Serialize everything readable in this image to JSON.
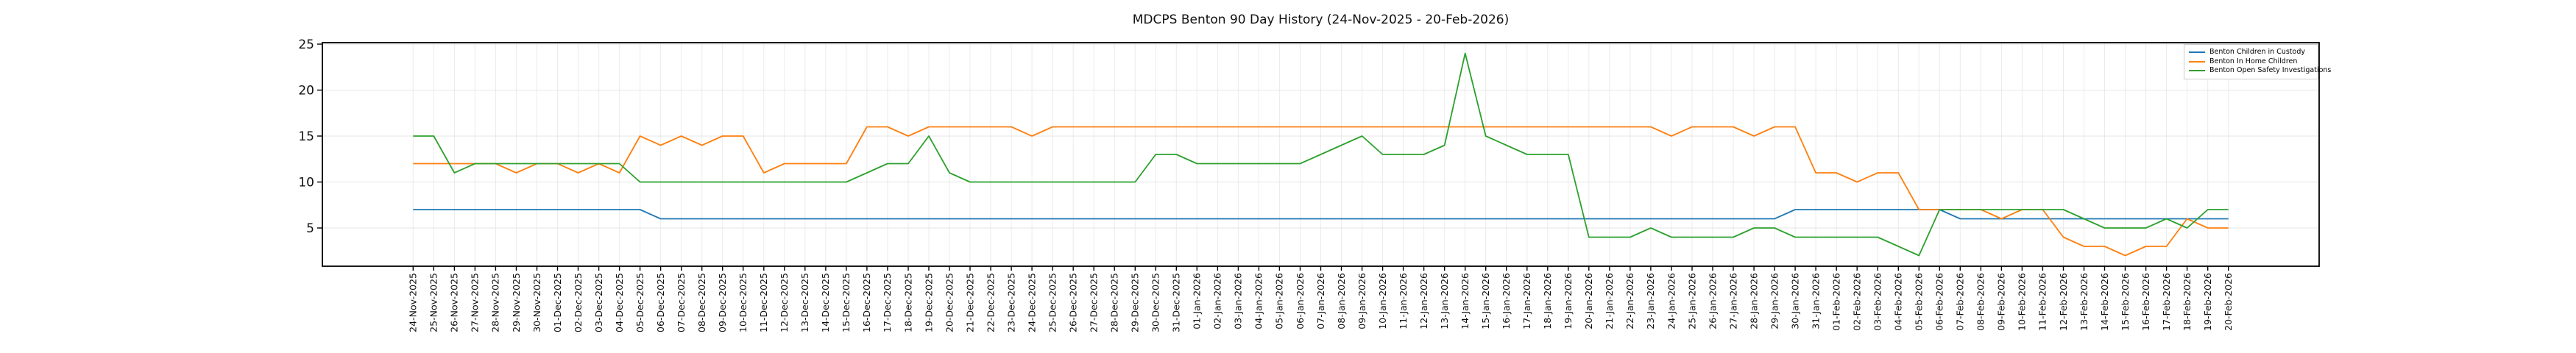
{
  "chart_data": {
    "type": "line",
    "title": "MDCPS Benton 90 Day History (24-Nov-2025 - 20-Feb-2026)",
    "xlabel": "",
    "ylabel": "",
    "grid": true,
    "legend_position": "upper right",
    "yticks": [
      5,
      10,
      15,
      20,
      25
    ],
    "ylim": [
      0.84,
      25.16
    ],
    "xlim_days": [
      -4.4,
      92.4
    ],
    "x": [
      "24-Nov-2025",
      "25-Nov-2025",
      "26-Nov-2025",
      "27-Nov-2025",
      "28-Nov-2025",
      "29-Nov-2025",
      "30-Nov-2025",
      "01-Dec-2025",
      "02-Dec-2025",
      "03-Dec-2025",
      "04-Dec-2025",
      "05-Dec-2025",
      "06-Dec-2025",
      "07-Dec-2025",
      "08-Dec-2025",
      "09-Dec-2025",
      "10-Dec-2025",
      "11-Dec-2025",
      "12-Dec-2025",
      "13-Dec-2025",
      "14-Dec-2025",
      "15-Dec-2025",
      "16-Dec-2025",
      "17-Dec-2025",
      "18-Dec-2025",
      "19-Dec-2025",
      "20-Dec-2025",
      "21-Dec-2025",
      "22-Dec-2025",
      "23-Dec-2025",
      "24-Dec-2025",
      "25-Dec-2025",
      "26-Dec-2025",
      "27-Dec-2025",
      "28-Dec-2025",
      "29-Dec-2025",
      "30-Dec-2025",
      "31-Dec-2025",
      "01-Jan-2026",
      "02-Jan-2026",
      "03-Jan-2026",
      "04-Jan-2026",
      "05-Jan-2026",
      "06-Jan-2026",
      "07-Jan-2026",
      "08-Jan-2026",
      "09-Jan-2026",
      "10-Jan-2026",
      "11-Jan-2026",
      "12-Jan-2026",
      "13-Jan-2026",
      "14-Jan-2026",
      "15-Jan-2026",
      "16-Jan-2026",
      "17-Jan-2026",
      "18-Jan-2026",
      "19-Jan-2026",
      "20-Jan-2026",
      "21-Jan-2026",
      "22-Jan-2026",
      "23-Jan-2026",
      "24-Jan-2026",
      "25-Jan-2026",
      "26-Jan-2026",
      "27-Jan-2026",
      "28-Jan-2026",
      "29-Jan-2026",
      "30-Jan-2026",
      "31-Jan-2026",
      "01-Feb-2026",
      "02-Feb-2026",
      "03-Feb-2026",
      "04-Feb-2026",
      "05-Feb-2026",
      "06-Feb-2026",
      "07-Feb-2026",
      "08-Feb-2026",
      "09-Feb-2026",
      "10-Feb-2026",
      "11-Feb-2026",
      "12-Feb-2026",
      "13-Feb-2026",
      "14-Feb-2026",
      "15-Feb-2026",
      "16-Feb-2026",
      "17-Feb-2026",
      "18-Feb-2026",
      "19-Feb-2026",
      "20-Feb-2026"
    ],
    "series": [
      {
        "name": "Benton Children in Custody",
        "color": "#1f77b4",
        "values": [
          7,
          7,
          7,
          7,
          7,
          7,
          7,
          7,
          7,
          7,
          7,
          7,
          6,
          6,
          6,
          6,
          6,
          6,
          6,
          6,
          6,
          6,
          6,
          6,
          6,
          6,
          6,
          6,
          6,
          6,
          6,
          6,
          6,
          6,
          6,
          6,
          6,
          6,
          6,
          6,
          6,
          6,
          6,
          6,
          6,
          6,
          6,
          6,
          6,
          6,
          6,
          6,
          6,
          6,
          6,
          6,
          6,
          6,
          6,
          6,
          6,
          6,
          6,
          6,
          6,
          6,
          6,
          7,
          7,
          7,
          7,
          7,
          7,
          7,
          7,
          6,
          6,
          6,
          6,
          6,
          6,
          6,
          6,
          6,
          6,
          6,
          6,
          6,
          6
        ]
      },
      {
        "name": "Benton In Home Children",
        "color": "#ff7f0e",
        "values": [
          12,
          12,
          12,
          12,
          12,
          11,
          12,
          12,
          11,
          12,
          11,
          15,
          14,
          15,
          14,
          15,
          15,
          11,
          12,
          12,
          12,
          12,
          16,
          16,
          15,
          16,
          16,
          16,
          16,
          16,
          15,
          16,
          16,
          16,
          16,
          16,
          16,
          16,
          16,
          16,
          16,
          16,
          16,
          16,
          16,
          16,
          16,
          16,
          16,
          16,
          16,
          16,
          16,
          16,
          16,
          16,
          16,
          16,
          16,
          16,
          16,
          15,
          16,
          16,
          16,
          15,
          16,
          16,
          11,
          11,
          10,
          11,
          11,
          7,
          7,
          7,
          7,
          6,
          7,
          7,
          4,
          3,
          3,
          2,
          3,
          3,
          6,
          5,
          5
        ]
      },
      {
        "name": "Benton Open Safety Investigations",
        "color": "#2ca02c",
        "values": [
          15,
          15,
          11,
          12,
          12,
          12,
          12,
          12,
          12,
          12,
          12,
          10,
          10,
          10,
          10,
          10,
          10,
          10,
          10,
          10,
          10,
          10,
          11,
          12,
          12,
          15,
          11,
          10,
          10,
          10,
          10,
          10,
          10,
          10,
          10,
          10,
          13,
          13,
          12,
          12,
          12,
          12,
          12,
          12,
          13,
          14,
          15,
          13,
          13,
          13,
          14,
          24,
          15,
          14,
          13,
          13,
          13,
          4,
          4,
          4,
          5,
          4,
          4,
          4,
          4,
          5,
          5,
          4,
          4,
          4,
          4,
          4,
          3,
          2,
          7,
          7,
          7,
          7,
          7,
          7,
          7,
          6,
          5,
          5,
          5,
          6,
          5,
          7,
          7
        ]
      }
    ]
  }
}
